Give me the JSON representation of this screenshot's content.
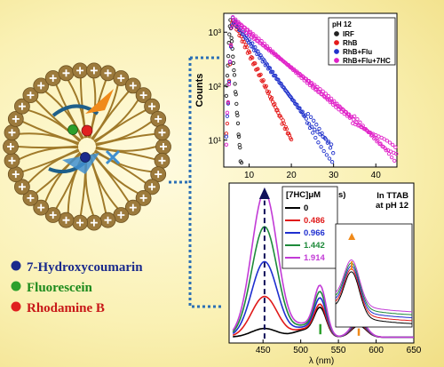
{
  "chart_data": [
    {
      "type": "scatter",
      "title": "",
      "ylabel": "Counts",
      "xlabel": "",
      "x_ticks": [
        "10",
        "20",
        "30",
        "40"
      ],
      "y_ticks": [
        "10¹",
        "10²",
        "10³"
      ],
      "xlim": [
        4,
        45
      ],
      "ylim_log": [
        0.5,
        3.35
      ],
      "legend_title": "pH 12",
      "legend_position": "top-right",
      "series": [
        {
          "name": "IRF",
          "color": "#222222",
          "peak_x": 5.5,
          "end_x": 8.5
        },
        {
          "name": "RhB",
          "color": "#e41b1b",
          "peak_x": 6,
          "end_x": 20
        },
        {
          "name": "RhB+Flu",
          "color": "#2233cc",
          "peak_x": 6,
          "end_x": 30
        },
        {
          "name": "RhB+Flu+7HC",
          "color": "#e020c8",
          "peak_x": 6,
          "end_x": 45
        }
      ]
    },
    {
      "type": "line",
      "title": "",
      "xlabel": "λ (nm)",
      "ylabel": "",
      "x_ticks": [
        "450",
        "500",
        "550",
        "600",
        "650"
      ],
      "xlim": [
        405,
        650
      ],
      "ylim": [
        0,
        1.1
      ],
      "legend_title": "[7HC]μM",
      "legend_position": "top-left",
      "annotation": "In TTAB\nat pH 12",
      "series": [
        {
          "name": "0",
          "color": "#000000",
          "peaks": [
            0.06,
            0.19,
            0.08
          ]
        },
        {
          "name": "0.486",
          "color": "#e01a1a",
          "peaks": [
            0.28,
            0.21,
            0.09
          ]
        },
        {
          "name": "0.966",
          "color": "#1f2fd0",
          "peaks": [
            0.52,
            0.25,
            0.1
          ]
        },
        {
          "name": "1.442",
          "color": "#1e8a3a",
          "peaks": [
            0.76,
            0.29,
            0.11
          ]
        },
        {
          "name": "1.914",
          "color": "#c23bd6",
          "peaks": [
            1.0,
            0.33,
            0.12
          ]
        }
      ],
      "inset_xlim": [
        560,
        650
      ]
    }
  ],
  "labels": {
    "hydroxycoumarin": "7-Hydroxycoumarin",
    "fluorescein": "Fluorescein",
    "rhodamine": "Rhodamine B",
    "inset_letter": "s)"
  },
  "colors": {
    "hydroxycoumarin": "#1a2a8c",
    "fluorescein": "#2ca02c",
    "rhodamine": "#e02020",
    "bead": "#9c7a3c",
    "dotted_link": "#2b6fb5"
  }
}
